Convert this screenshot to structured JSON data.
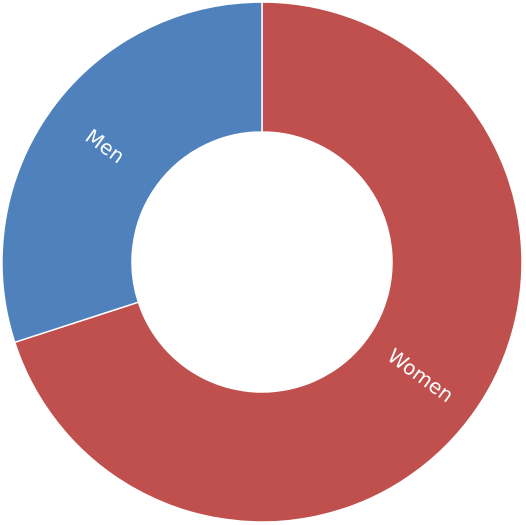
{
  "chart_data": {
    "type": "donut",
    "categories": [
      "Women",
      "Men"
    ],
    "values": [
      70,
      30
    ],
    "colors": [
      "#c0504d",
      "#4f81bd"
    ]
  }
}
